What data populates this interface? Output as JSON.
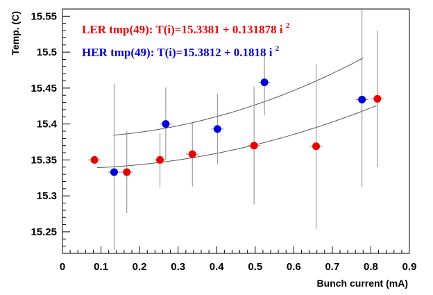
{
  "chart_data": {
    "type": "scatter",
    "title": "",
    "xlabel": "Bunch current (mA)",
    "ylabel": "Temp. (C)",
    "xlim": [
      0,
      0.9
    ],
    "ylim": [
      15.22,
      15.56
    ],
    "x_ticks": [
      "0",
      "0.1",
      "0.2",
      "0.3",
      "0.4",
      "0.5",
      "0.6",
      "0.7",
      "0.8",
      "0.9"
    ],
    "y_ticks": [
      "15.25",
      "15.3",
      "15.35",
      "15.4",
      "15.45",
      "15.5",
      "15.55"
    ],
    "grid": false,
    "legend_position": "top-left",
    "series": [
      {
        "name": "LER",
        "label_prefix": "LER tmp(49): T(i)=15.3381 + 0.131878 i",
        "label_sup": "2",
        "color": "#ee0000",
        "fit": {
          "a": 15.3381,
          "b": 0.131878,
          "x_range": [
            0.09,
            0.815
          ]
        },
        "points": [
          {
            "x": 0.083,
            "y": 15.35,
            "err_low": 15.35,
            "err_high": 15.35
          },
          {
            "x": 0.167,
            "y": 15.333,
            "err_low": 15.276,
            "err_high": 15.39
          },
          {
            "x": 0.253,
            "y": 15.35,
            "err_low": 15.312,
            "err_high": 15.387
          },
          {
            "x": 0.337,
            "y": 15.358,
            "err_low": 15.313,
            "err_high": 15.402
          },
          {
            "x": 0.497,
            "y": 15.37,
            "err_low": 15.288,
            "err_high": 15.452
          },
          {
            "x": 0.658,
            "y": 15.369,
            "err_low": 15.254,
            "err_high": 15.483
          },
          {
            "x": 0.817,
            "y": 15.435,
            "err_low": 15.34,
            "err_high": 15.53
          }
        ]
      },
      {
        "name": "HER",
        "label_prefix": "HER tmp(49): T(i)=15.3812 + 0.1818 i",
        "label_sup": "2",
        "color": "#0000dd",
        "fit": {
          "a": 15.3812,
          "b": 0.1818,
          "x_range": [
            0.132,
            0.78
          ]
        },
        "points": [
          {
            "x": 0.134,
            "y": 15.333,
            "err_low": 15.225,
            "err_high": 15.456
          },
          {
            "x": 0.268,
            "y": 15.4,
            "err_low": 15.35,
            "err_high": 15.451
          },
          {
            "x": 0.402,
            "y": 15.393,
            "err_low": 15.344,
            "err_high": 15.442
          },
          {
            "x": 0.524,
            "y": 15.458,
            "err_low": 15.412,
            "err_high": 15.505
          },
          {
            "x": 0.777,
            "y": 15.434,
            "err_low": 15.312,
            "err_high": 15.56
          }
        ]
      }
    ]
  }
}
